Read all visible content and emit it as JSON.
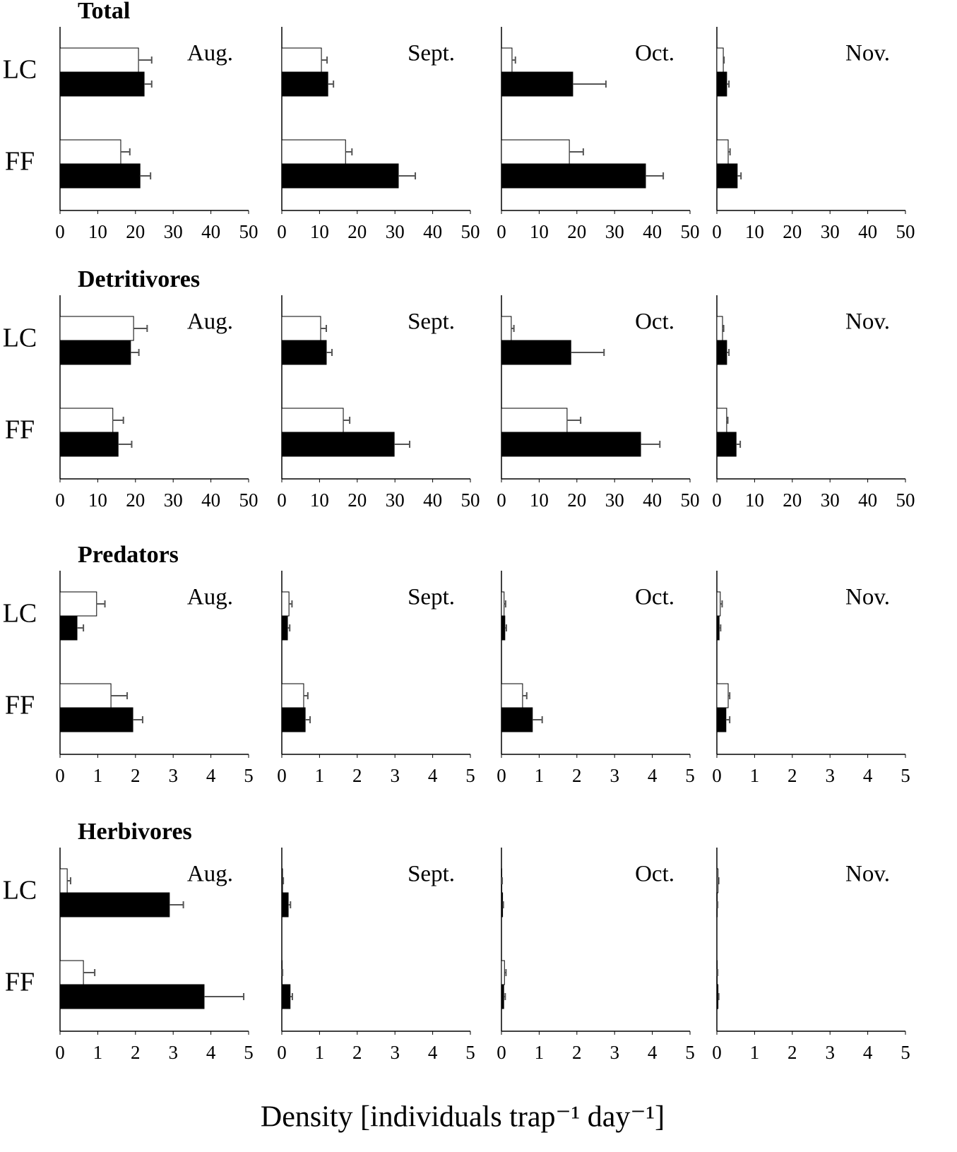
{
  "xlabel": "Density [individuals trap⁻¹ day⁻¹]",
  "chart_data": [
    {
      "type": "bar",
      "orientation": "horizontal",
      "title": "Total",
      "categories": [
        "LC",
        "FF"
      ],
      "xlim": [
        0,
        50
      ],
      "xticks": [
        0,
        10,
        20,
        30,
        40,
        50
      ],
      "panels": [
        {
          "label": "Aug.",
          "series": [
            {
              "color": "#ffffff",
              "values": [
                20.8,
                16.1
              ],
              "errors": [
                3.5,
                2.4
              ]
            },
            {
              "color": "#000000",
              "values": [
                22.3,
                21.2
              ],
              "errors": [
                2.0,
                2.8
              ]
            }
          ]
        },
        {
          "label": "Sept.",
          "series": [
            {
              "color": "#ffffff",
              "values": [
                10.5,
                16.9
              ],
              "errors": [
                1.5,
                1.7
              ]
            },
            {
              "color": "#000000",
              "values": [
                12.2,
                30.9
              ],
              "errors": [
                1.5,
                4.5
              ]
            }
          ]
        },
        {
          "label": "Oct.",
          "series": [
            {
              "color": "#ffffff",
              "values": [
                2.8,
                18.0
              ],
              "errors": [
                0.9,
                3.7
              ]
            },
            {
              "color": "#000000",
              "values": [
                18.9,
                38.2
              ],
              "errors": [
                8.8,
                4.7
              ]
            }
          ]
        },
        {
          "label": "Nov.",
          "series": [
            {
              "color": "#ffffff",
              "values": [
                1.7,
                3.0
              ],
              "errors": [
                0.2,
                0.5
              ]
            },
            {
              "color": "#000000",
              "values": [
                2.6,
                5.4
              ],
              "errors": [
                0.6,
                1.0
              ]
            }
          ]
        }
      ]
    },
    {
      "type": "bar",
      "orientation": "horizontal",
      "title": "Detritivores",
      "categories": [
        "LC",
        "FF"
      ],
      "xlim": [
        0,
        50
      ],
      "xticks": [
        0,
        10,
        20,
        30,
        40,
        50
      ],
      "panels": [
        {
          "label": "Aug.",
          "series": [
            {
              "color": "#ffffff",
              "values": [
                19.5,
                14.0
              ],
              "errors": [
                3.6,
                2.8
              ]
            },
            {
              "color": "#000000",
              "values": [
                18.7,
                15.4
              ],
              "errors": [
                2.2,
                3.6
              ]
            }
          ]
        },
        {
          "label": "Sept.",
          "series": [
            {
              "color": "#ffffff",
              "values": [
                10.3,
                16.3
              ],
              "errors": [
                1.5,
                1.7
              ]
            },
            {
              "color": "#000000",
              "values": [
                11.8,
                29.8
              ],
              "errors": [
                1.5,
                4.1
              ]
            }
          ]
        },
        {
          "label": "Oct.",
          "series": [
            {
              "color": "#ffffff",
              "values": [
                2.6,
                17.4
              ],
              "errors": [
                0.7,
                3.6
              ]
            },
            {
              "color": "#000000",
              "values": [
                18.4,
                36.9
              ],
              "errors": [
                8.8,
                5.1
              ]
            }
          ]
        },
        {
          "label": "Nov.",
          "series": [
            {
              "color": "#ffffff",
              "values": [
                1.5,
                2.6
              ],
              "errors": [
                0.3,
                0.3
              ]
            },
            {
              "color": "#000000",
              "values": [
                2.6,
                5.1
              ],
              "errors": [
                0.6,
                1.1
              ]
            }
          ]
        }
      ]
    },
    {
      "type": "bar",
      "orientation": "horizontal",
      "title": "Predators",
      "categories": [
        "LC",
        "FF"
      ],
      "xlim": [
        0,
        5
      ],
      "xticks": [
        0,
        1,
        2,
        3,
        4,
        5
      ],
      "panels": [
        {
          "label": "Aug.",
          "series": [
            {
              "color": "#ffffff",
              "values": [
                0.97,
                1.35
              ],
              "errors": [
                0.22,
                0.43
              ]
            },
            {
              "color": "#000000",
              "values": [
                0.45,
                1.93
              ],
              "errors": [
                0.17,
                0.26
              ]
            }
          ]
        },
        {
          "label": "Sept.",
          "series": [
            {
              "color": "#ffffff",
              "values": [
                0.19,
                0.58
              ],
              "errors": [
                0.08,
                0.11
              ]
            },
            {
              "color": "#000000",
              "values": [
                0.15,
                0.62
              ],
              "errors": [
                0.06,
                0.13
              ]
            }
          ]
        },
        {
          "label": "Oct.",
          "series": [
            {
              "color": "#ffffff",
              "values": [
                0.07,
                0.56
              ],
              "errors": [
                0.04,
                0.11
              ]
            },
            {
              "color": "#000000",
              "values": [
                0.09,
                0.82
              ],
              "errors": [
                0.04,
                0.26
              ]
            }
          ]
        },
        {
          "label": "Nov.",
          "series": [
            {
              "color": "#ffffff",
              "values": [
                0.09,
                0.3
              ],
              "errors": [
                0.05,
                0.04
              ]
            },
            {
              "color": "#000000",
              "values": [
                0.06,
                0.24
              ],
              "errors": [
                0.04,
                0.1
              ]
            }
          ]
        }
      ]
    },
    {
      "type": "bar",
      "orientation": "horizontal",
      "title": "Herbivores",
      "categories": [
        "LC",
        "FF"
      ],
      "xlim": [
        0,
        5
      ],
      "xticks": [
        0,
        1,
        2,
        3,
        4,
        5
      ],
      "panels": [
        {
          "label": "Aug.",
          "series": [
            {
              "color": "#ffffff",
              "values": [
                0.19,
                0.62
              ],
              "errors": [
                0.09,
                0.3
              ]
            },
            {
              "color": "#000000",
              "values": [
                2.9,
                3.82
              ],
              "errors": [
                0.37,
                1.05
              ]
            }
          ]
        },
        {
          "label": "Sept.",
          "series": [
            {
              "color": "#ffffff",
              "values": [
                0.02,
                0.01
              ],
              "errors": [
                0.02,
                0.01
              ]
            },
            {
              "color": "#000000",
              "values": [
                0.17,
                0.22
              ],
              "errors": [
                0.06,
                0.06
              ]
            }
          ]
        },
        {
          "label": "Oct.",
          "series": [
            {
              "color": "#ffffff",
              "values": [
                0.01,
                0.08
              ],
              "errors": [
                0.01,
                0.04
              ]
            },
            {
              "color": "#000000",
              "values": [
                0.03,
                0.06
              ],
              "errors": [
                0.02,
                0.04
              ]
            }
          ]
        },
        {
          "label": "Nov.",
          "series": [
            {
              "color": "#ffffff",
              "values": [
                0.03,
                0.01
              ],
              "errors": [
                0.02,
                0.01
              ]
            },
            {
              "color": "#000000",
              "values": [
                0.01,
                0.03
              ],
              "errors": [
                0.01,
                0.02
              ]
            }
          ]
        }
      ]
    }
  ]
}
